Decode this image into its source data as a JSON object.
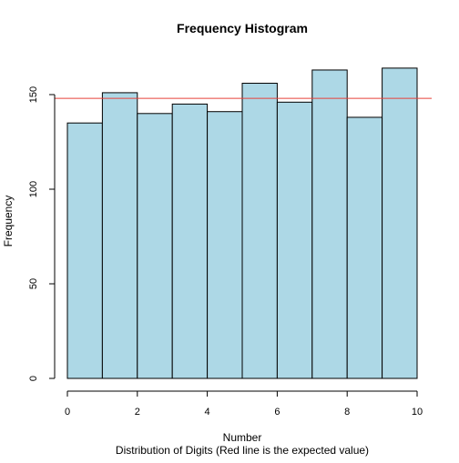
{
  "chart_data": {
    "type": "bar",
    "title": "Frequency Histogram",
    "xlabel": "Number",
    "ylabel": "Frequency",
    "subtitle": "Distribution of Digits (Red line is the expected value)",
    "bins": [
      {
        "x0": 0,
        "x1": 1,
        "count": 135
      },
      {
        "x0": 1,
        "x1": 2,
        "count": 151
      },
      {
        "x0": 2,
        "x1": 3,
        "count": 140
      },
      {
        "x0": 3,
        "x1": 4,
        "count": 145
      },
      {
        "x0": 4,
        "x1": 5,
        "count": 141
      },
      {
        "x0": 5,
        "x1": 6,
        "count": 156
      },
      {
        "x0": 6,
        "x1": 7,
        "count": 146
      },
      {
        "x0": 7,
        "x1": 8,
        "count": 163
      },
      {
        "x0": 8,
        "x1": 9,
        "count": 138
      },
      {
        "x0": 9,
        "x1": 10,
        "count": 164
      }
    ],
    "expected_value": 148,
    "xlim": [
      0,
      10
    ],
    "ylim": [
      0,
      170
    ],
    "x_ticks": [
      0,
      2,
      4,
      6,
      8,
      10
    ],
    "y_ticks": [
      0,
      50,
      100,
      150
    ],
    "colors": {
      "bar_fill": "#add8e6",
      "bar_stroke": "#000000",
      "expected_line": "#e8403a",
      "axis": "#000000"
    }
  }
}
